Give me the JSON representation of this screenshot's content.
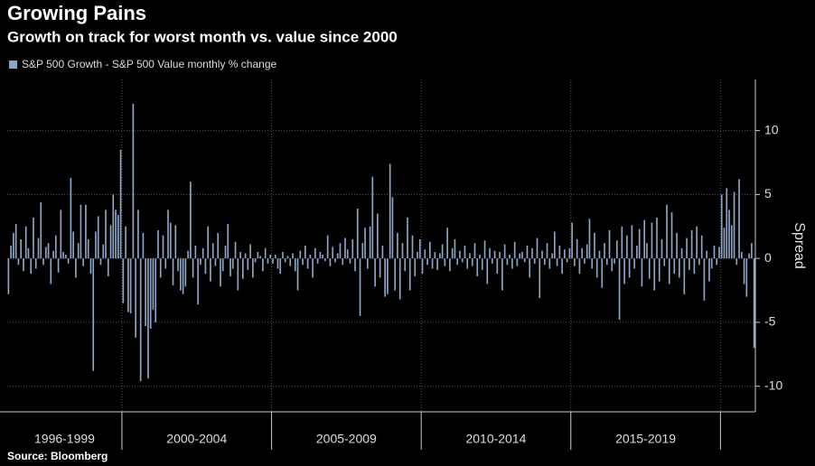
{
  "chart_data": {
    "type": "bar",
    "title": "Growing Pains",
    "subtitle": "Growth on track for worst month vs. value since 2000",
    "legend": "S&P 500 Growth - S&P 500 Value monthly % change",
    "y_axis_label": "Spread",
    "source": "Source: Bloomberg",
    "color": "#8ea6c6",
    "ylim": [
      -12,
      14
    ],
    "yticks": [
      -10,
      -5,
      0,
      5,
      10
    ],
    "grid": true,
    "groups": [
      {
        "label": "1996-1999",
        "values": [
          -2.8,
          1.0,
          2.0,
          2.7,
          -0.5,
          1.5,
          -1.0,
          2.5,
          0.8,
          -1.2,
          3.2,
          -0.8,
          1.6,
          4.4,
          -0.5,
          0.9,
          1.2,
          -2.0,
          0.6,
          1.8,
          -1.1,
          3.8,
          0.5,
          0.3,
          -0.4,
          6.3,
          2.1,
          -1.5,
          1.2,
          4.2,
          -0.6,
          4.2,
          1.5,
          -1.2,
          -8.8,
          2.1,
          3.3,
          -0.5,
          1.1,
          3.8,
          -1.4,
          2.6,
          5.0,
          3.8,
          3.4,
          8.5
        ]
      },
      {
        "label": "2000-2004",
        "values": [
          -3.5,
          2.5,
          -4.2,
          -4.3,
          12.1,
          -6.2,
          3.8,
          -9.6,
          2.0,
          -5.3,
          -9.4,
          -5.5,
          -4.0,
          -5.0,
          2.2,
          -1.5,
          1.8,
          -0.8,
          3.8,
          2.8,
          -2.1,
          2.6,
          -1.0,
          -2.5,
          -2.8,
          -2.2,
          0.6,
          6.0,
          -1.5,
          1.0,
          -3.6,
          -0.5,
          0.8,
          -1.2,
          2.5,
          -1.8,
          1.2,
          -0.6,
          2.0,
          -2.2,
          -1.0,
          1.0,
          2.7,
          -1.4,
          -0.8,
          1.3,
          -2.5,
          0.5,
          -1.6,
          0.4,
          -0.9,
          1.1,
          -1.5,
          -0.3,
          0.5,
          0.2,
          -1.0,
          0.8,
          -0.4,
          0.3
        ]
      },
      {
        "label": "2005-2009",
        "values": [
          -0.4,
          0.3,
          -0.8,
          -1.2,
          0.5,
          -0.3,
          0.2,
          -0.6,
          0.4,
          -1.0,
          -2.5,
          0.6,
          -0.5,
          1.0,
          -0.8,
          0.3,
          -1.5,
          0.8,
          -0.4,
          0.5,
          0.3,
          -0.2,
          1.8,
          -0.6,
          0.9,
          -0.3,
          0.4,
          1.2,
          -0.5,
          1.6,
          0.7,
          -0.4,
          1.5,
          -1.0,
          3.9,
          -4.5,
          1.2,
          2.4,
          -0.8,
          2.5,
          6.4,
          -2.2,
          3.5,
          -1.5,
          1.0,
          -3.0,
          -2.8,
          7.4,
          4.8,
          -2.5,
          2.0,
          -3.2,
          1.2,
          -1.0,
          3.2,
          -2.5,
          1.8,
          -1.4,
          0.5,
          1.5
        ]
      },
      {
        "label": "2010-2014",
        "values": [
          -1.2,
          0.7,
          -0.5,
          1.3,
          -0.8,
          0.5,
          -0.9,
          0.4,
          1.1,
          -0.6,
          2.4,
          -1.0,
          0.8,
          1.5,
          -0.5,
          0.6,
          -0.3,
          1.0,
          -0.8,
          0.4,
          -0.6,
          1.2,
          -1.4,
          0.3,
          -0.9,
          1.4,
          -2.0,
          0.8,
          -0.4,
          0.6,
          -1.2,
          0.5,
          -2.5,
          1.1,
          -0.5,
          0.3,
          -0.8,
          1.3,
          -0.6,
          0.4,
          0.5,
          -0.3,
          1.0,
          -1.5,
          0.8,
          -0.4,
          1.6,
          -3.1,
          0.6,
          -0.5,
          1.2,
          -0.8,
          0.4,
          2.1,
          -0.6,
          1.0,
          -1.2,
          0.7,
          -0.3,
          0.8
        ]
      },
      {
        "label": "2015-2019",
        "values": [
          2.8,
          -0.6,
          1.5,
          -1.2,
          0.8,
          -0.4,
          1.1,
          3.1,
          -0.8,
          2.0,
          -1.5,
          0.6,
          -2.3,
          1.2,
          -0.5,
          2.2,
          -1.0,
          -0.4,
          1.4,
          -4.8,
          2.5,
          -2.0,
          1.8,
          -1.5,
          2.6,
          -0.8,
          1.0,
          2.3,
          -2.2,
          3.0,
          1.2,
          -1.6,
          2.8,
          -2.5,
          3.2,
          -1.8,
          1.5,
          -0.6,
          4.2,
          -2.0,
          3.6,
          -1.2,
          2.0,
          -1.5,
          0.8,
          -2.8,
          1.6,
          -0.9,
          2.2,
          -1.2,
          2.5,
          -0.5,
          1.8,
          -3.3,
          0.6,
          -1.8,
          -0.8,
          1.0,
          -0.5,
          0.9
        ]
      },
      {
        "values": [
          5.0,
          2.4,
          5.5,
          3.8,
          2.6,
          5.2,
          -0.5,
          6.2,
          0.5,
          -2.0,
          -3.0,
          0.4,
          1.2,
          -7.0
        ]
      }
    ]
  }
}
